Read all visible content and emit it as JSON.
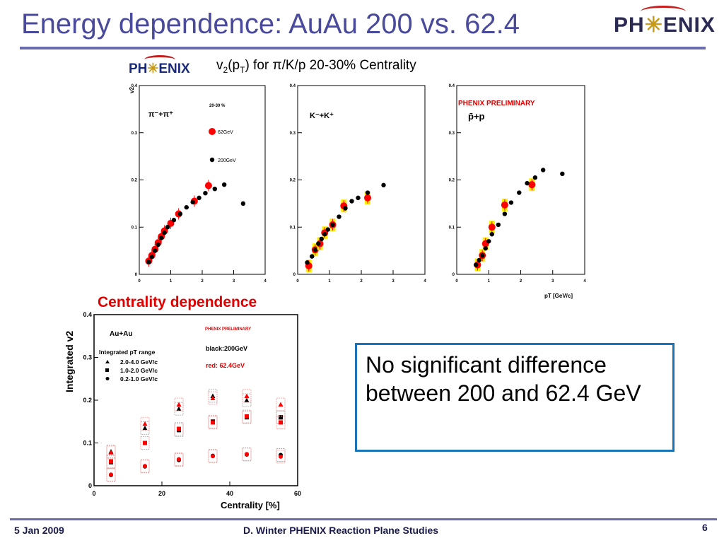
{
  "slide": {
    "title": "Energy dependence: AuAu 200 vs. 62.4",
    "logo_text_left": "PH",
    "logo_text_right": "ENIX",
    "subtitle_pre": "v",
    "subtitle_sub2": "2",
    "subtitle_mid": "(p",
    "subtitle_subT": "T",
    "subtitle_post": ") for π/K/p  20-30% Centrality",
    "centrality_heading": "Centrality dependence",
    "note": "No significant difference between 200 and 62.4 GeV",
    "footer_date": "5 Jan 2009",
    "footer_center": "D. Winter PHENIX Reaction Plane Studies",
    "page_number": "6"
  },
  "colors": {
    "title": "#4a4a9c",
    "rule": "#6b6bb0",
    "energy_62": "#ff0000",
    "energy_200": "#000000",
    "error_band": "#ffee00",
    "preliminary": "#e00000",
    "note_border": "#1c74b8"
  },
  "chart_data": [
    {
      "type": "scatter",
      "panel": "pion",
      "ylabel": "v2",
      "xlim": [
        0,
        4
      ],
      "ylim": [
        0,
        0.4
      ],
      "xticks": [
        "0",
        "1",
        "2",
        "3",
        "4"
      ],
      "yticks": [
        "0",
        "0.1",
        "0.2",
        "0.3",
        "0.4"
      ],
      "label": "π⁻+π⁺",
      "centrality_label": "20-30 %",
      "legend": [
        {
          "name": "62GeV",
          "color": "#ff0000"
        },
        {
          "name": "200GeV",
          "color": "#000000"
        }
      ],
      "series": [
        {
          "name": "62GeV",
          "points": [
            [
              0.3,
              0.028
            ],
            [
              0.4,
              0.04
            ],
            [
              0.5,
              0.053
            ],
            [
              0.6,
              0.067
            ],
            [
              0.7,
              0.08
            ],
            [
              0.8,
              0.092
            ],
            [
              1.0,
              0.108
            ],
            [
              1.25,
              0.128
            ],
            [
              1.75,
              0.155
            ],
            [
              2.2,
              0.188
            ]
          ]
        },
        {
          "name": "200GeV",
          "points": [
            [
              0.3,
              0.026
            ],
            [
              0.4,
              0.037
            ],
            [
              0.5,
              0.05
            ],
            [
              0.6,
              0.063
            ],
            [
              0.7,
              0.077
            ],
            [
              0.8,
              0.088
            ],
            [
              0.9,
              0.1
            ],
            [
              1.1,
              0.115
            ],
            [
              1.3,
              0.128
            ],
            [
              1.5,
              0.142
            ],
            [
              1.7,
              0.153
            ],
            [
              1.9,
              0.162
            ],
            [
              2.1,
              0.172
            ],
            [
              2.4,
              0.181
            ],
            [
              2.7,
              0.19
            ],
            [
              3.3,
              0.15
            ]
          ]
        }
      ]
    },
    {
      "type": "scatter",
      "panel": "kaon",
      "xlim": [
        0,
        4
      ],
      "ylim": [
        0,
        0.4
      ],
      "xticks": [
        "0",
        "1",
        "2",
        "3",
        "4"
      ],
      "yticks": [
        "0",
        "0.1",
        "0.2",
        "0.3",
        "0.4"
      ],
      "label": "K⁻+K⁺",
      "series": [
        {
          "name": "62GeV",
          "points": [
            [
              0.35,
              0.018
            ],
            [
              0.55,
              0.052
            ],
            [
              0.7,
              0.065
            ],
            [
              0.85,
              0.088
            ],
            [
              1.1,
              0.105
            ],
            [
              1.45,
              0.145
            ],
            [
              2.2,
              0.162
            ]
          ]
        },
        {
          "name": "200GeV",
          "points": [
            [
              0.3,
              0.025
            ],
            [
              0.45,
              0.038
            ],
            [
              0.55,
              0.052
            ],
            [
              0.65,
              0.065
            ],
            [
              0.75,
              0.075
            ],
            [
              0.85,
              0.085
            ],
            [
              0.95,
              0.095
            ],
            [
              1.1,
              0.105
            ],
            [
              1.3,
              0.122
            ],
            [
              1.5,
              0.14
            ],
            [
              1.7,
              0.155
            ],
            [
              1.9,
              0.162
            ],
            [
              2.2,
              0.173
            ],
            [
              2.7,
              0.189
            ]
          ]
        }
      ]
    },
    {
      "type": "scatter",
      "panel": "proton",
      "xlabel": "pT [GeV/c]",
      "xlim": [
        0,
        4
      ],
      "ylim": [
        0,
        0.4
      ],
      "xticks": [
        "0",
        "1",
        "2",
        "3",
        "4"
      ],
      "yticks": [
        "0",
        "0.1",
        "0.2",
        "0.3",
        "0.4"
      ],
      "label": "p̄+p",
      "preliminary": "PHENIX PRELIMINARY",
      "series": [
        {
          "name": "62GeV",
          "points": [
            [
              0.65,
              0.02
            ],
            [
              0.8,
              0.04
            ],
            [
              0.9,
              0.065
            ],
            [
              1.1,
              0.1
            ],
            [
              1.5,
              0.147
            ],
            [
              2.35,
              0.19
            ]
          ]
        },
        {
          "name": "200GeV",
          "points": [
            [
              0.6,
              0.02
            ],
            [
              0.7,
              0.03
            ],
            [
              0.8,
              0.04
            ],
            [
              0.9,
              0.055
            ],
            [
              1.0,
              0.07
            ],
            [
              1.1,
              0.085
            ],
            [
              1.3,
              0.105
            ],
            [
              1.5,
              0.128
            ],
            [
              1.7,
              0.152
            ],
            [
              1.95,
              0.173
            ],
            [
              2.2,
              0.193
            ],
            [
              2.45,
              0.205
            ],
            [
              2.7,
              0.221
            ],
            [
              3.3,
              0.213
            ]
          ]
        }
      ]
    },
    {
      "type": "scatter",
      "panel": "centrality",
      "xlabel": "Centrality [%]",
      "ylabel": "Integrated v2",
      "xlim": [
        0,
        60
      ],
      "ylim": [
        0,
        0.4
      ],
      "xticks": [
        "0",
        "20",
        "40",
        "60"
      ],
      "yticks": [
        "0",
        "0.1",
        "0.2",
        "0.3",
        "0.4"
      ],
      "system": "Au+Au",
      "preliminary": "PHENIX PRELIMINARY",
      "legend_title": "Integrated pT range",
      "ranges": [
        "2.0-4.0 GeV/c",
        "1.0-2.0 GeV/c",
        "0.2-1.0 GeV/c"
      ],
      "energy_labels": [
        "black:200GeV",
        "red:  62.4GeV"
      ],
      "series": [
        {
          "name": "2.0-4.0 GeV/c 200GeV",
          "marker": "triangle",
          "color": "#000000",
          "points": [
            [
              5,
              0.08
            ],
            [
              15,
              0.135
            ],
            [
              25,
              0.18
            ],
            [
              35,
              0.21
            ],
            [
              45,
              0.2
            ],
            [
              55,
              0.16
            ]
          ]
        },
        {
          "name": "2.0-4.0 GeV/c 62.4GeV",
          "marker": "triangle",
          "color": "#ff0000",
          "points": [
            [
              5,
              0.078
            ],
            [
              15,
              0.145
            ],
            [
              25,
              0.19
            ],
            [
              35,
              0.205
            ],
            [
              45,
              0.21
            ],
            [
              55,
              0.19
            ]
          ]
        },
        {
          "name": "1.0-2.0 GeV/c 200GeV",
          "marker": "square",
          "color": "#000000",
          "points": [
            [
              5,
              0.055
            ],
            [
              15,
              0.1
            ],
            [
              25,
              0.13
            ],
            [
              35,
              0.15
            ],
            [
              45,
              0.16
            ],
            [
              55,
              0.16
            ]
          ]
        },
        {
          "name": "1.0-2.0 GeV/c 62.4GeV",
          "marker": "square",
          "color": "#ff0000",
          "points": [
            [
              5,
              0.057
            ],
            [
              15,
              0.1
            ],
            [
              25,
              0.133
            ],
            [
              35,
              0.148
            ],
            [
              45,
              0.162
            ],
            [
              55,
              0.148
            ]
          ]
        },
        {
          "name": "0.2-1.0 GeV/c 200GeV",
          "marker": "circle",
          "color": "#000000",
          "points": [
            [
              5,
              0.025
            ],
            [
              15,
              0.045
            ],
            [
              25,
              0.06
            ],
            [
              35,
              0.07
            ],
            [
              45,
              0.073
            ],
            [
              55,
              0.072
            ]
          ]
        },
        {
          "name": "0.2-1.0 GeV/c 62.4GeV",
          "marker": "circle",
          "color": "#ff0000",
          "points": [
            [
              5,
              0.026
            ],
            [
              15,
              0.046
            ],
            [
              25,
              0.062
            ],
            [
              35,
              0.069
            ],
            [
              45,
              0.074
            ],
            [
              55,
              0.068
            ]
          ]
        }
      ]
    }
  ]
}
